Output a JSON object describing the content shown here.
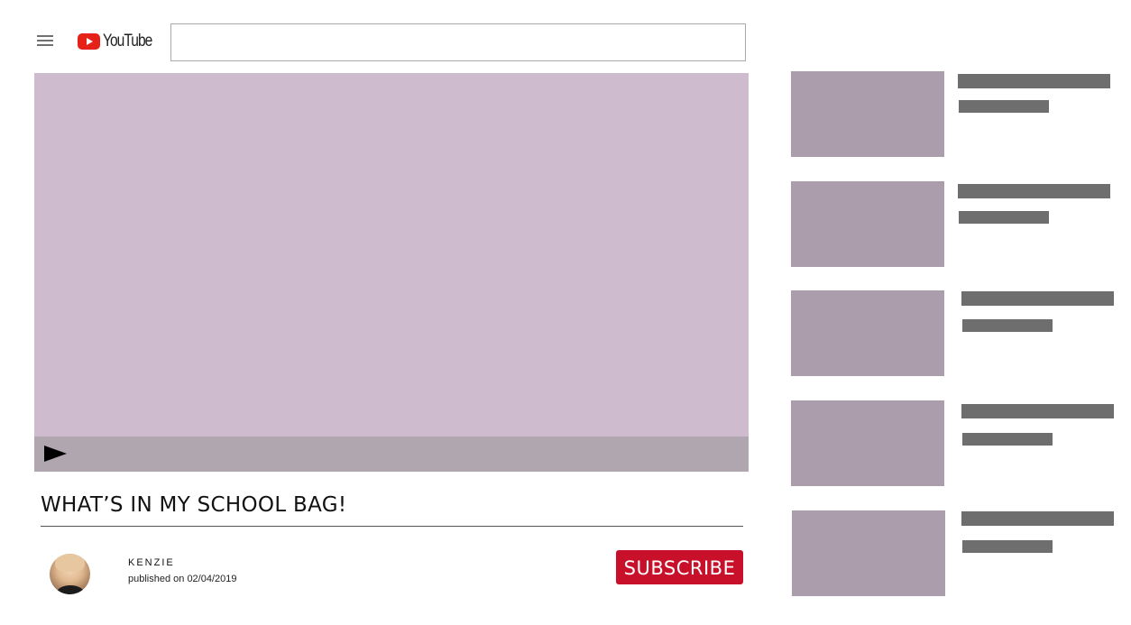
{
  "header": {
    "menu_icon": "hamburger-menu-icon",
    "logo_text": "YouTube",
    "search": {
      "value": "",
      "placeholder": ""
    }
  },
  "player": {
    "play_icon": "play-icon",
    "colors": {
      "screen": "#cebbce",
      "control_bar": "#b0a6af"
    }
  },
  "video": {
    "title": "WHAT’S IN MY SCHOOL BAG!",
    "channel_name": "KENZIE",
    "published": "published on 02/04/2019",
    "subscribe_label": "SUBSCRIBE"
  },
  "sidebar": {
    "items": [
      {
        "title": "",
        "meta": ""
      },
      {
        "title": "",
        "meta": ""
      },
      {
        "title": "",
        "meta": ""
      },
      {
        "title": "",
        "meta": ""
      },
      {
        "title": "",
        "meta": ""
      }
    ]
  },
  "colors": {
    "brand_red": "#e62117",
    "subscribe_red": "#c9102a",
    "thumbnail": "#ac9dac",
    "placeholder_bar": "#6e6e6e"
  }
}
